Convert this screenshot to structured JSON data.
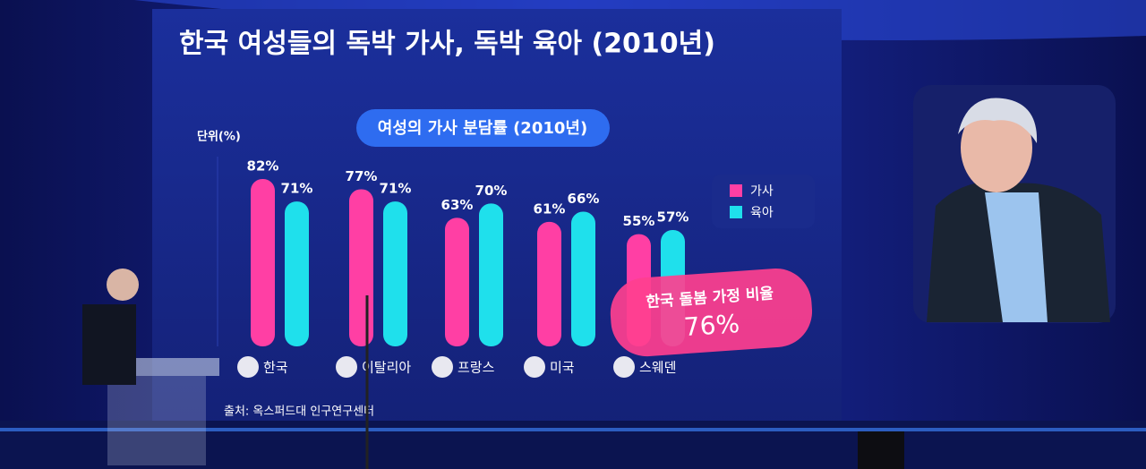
{
  "chart_data": {
    "type": "bar",
    "title": "한국 여성들의 독박 가사, 독박 육아 (2010년)",
    "subtitle": "여성의 가사 분담률 (2010년)",
    "unit_label": "단위(%)",
    "categories": [
      "한국",
      "이탈리아",
      "프랑스",
      "미국",
      "스웨덴"
    ],
    "series": [
      {
        "name": "가사",
        "color": "#ff3fa4",
        "values": [
          82,
          77,
          63,
          61,
          55
        ],
        "value_labels": [
          "82%",
          "77%",
          "63%",
          "61%",
          "55%"
        ]
      },
      {
        "name": "육아",
        "color": "#1fe0ec",
        "values": [
          71,
          71,
          70,
          66,
          57
        ],
        "value_labels": [
          "71%",
          "71%",
          "70%",
          "66%",
          "57%"
        ]
      }
    ],
    "ylim": [
      0,
      100
    ],
    "legend": "right",
    "annotation": {
      "text": "한국 돌봄 가정 비율",
      "value": "76%"
    },
    "source": "출처: 옥스퍼드대 인구연구센터"
  }
}
